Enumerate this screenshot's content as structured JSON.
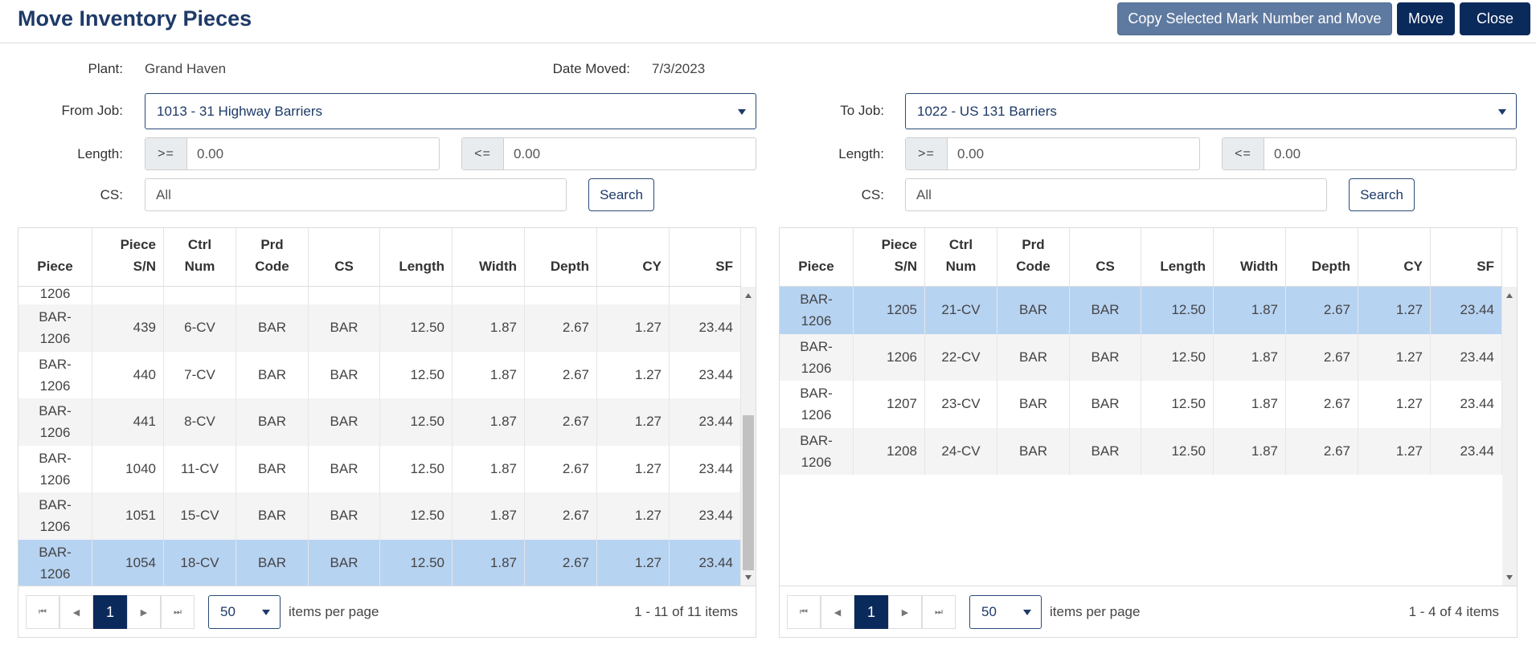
{
  "header": {
    "title": "Move Inventory Pieces",
    "copy_label": "Copy Selected Mark Number and Move",
    "move_label": "Move",
    "close_label": "Close"
  },
  "form": {
    "plant_label": "Plant:",
    "plant_value": "Grand Haven",
    "date_label": "Date Moved:",
    "date_value": "7/3/2023",
    "from_job_label": "From Job:",
    "from_job_value": "1013 - 31 Highway Barriers",
    "to_job_label": "To Job:",
    "to_job_value": "1022 - US 131 Barriers",
    "length_label": "Length:",
    "gte": ">=",
    "lte": "<=",
    "from_length_min": "0.00",
    "from_length_max": "0.00",
    "to_length_min": "0.00",
    "to_length_max": "0.00",
    "cs_label": "CS:",
    "from_cs_value": "All",
    "to_cs_value": "All",
    "search_label": "Search"
  },
  "columns": {
    "piece": "Piece",
    "sn_line1": "Piece",
    "sn_line2": "S/N",
    "ctrl_line1": "Ctrl",
    "ctrl_line2": "Num",
    "prd_line1": "Prd",
    "prd_line2": "Code",
    "cs": "CS",
    "length": "Length",
    "width": "Width",
    "depth": "Depth",
    "cy": "CY",
    "sf": "SF"
  },
  "left_grid": {
    "partial_row_piece": "1206",
    "rows": [
      {
        "piece_a": "BAR-",
        "piece_b": "1206",
        "sn": "439",
        "ctrl": "6-CV",
        "prd": "BAR",
        "cs": "BAR",
        "length": "12.50",
        "width": "1.87",
        "depth": "2.67",
        "cy": "1.27",
        "sf": "23.44"
      },
      {
        "piece_a": "BAR-",
        "piece_b": "1206",
        "sn": "440",
        "ctrl": "7-CV",
        "prd": "BAR",
        "cs": "BAR",
        "length": "12.50",
        "width": "1.87",
        "depth": "2.67",
        "cy": "1.27",
        "sf": "23.44"
      },
      {
        "piece_a": "BAR-",
        "piece_b": "1206",
        "sn": "441",
        "ctrl": "8-CV",
        "prd": "BAR",
        "cs": "BAR",
        "length": "12.50",
        "width": "1.87",
        "depth": "2.67",
        "cy": "1.27",
        "sf": "23.44"
      },
      {
        "piece_a": "BAR-",
        "piece_b": "1206",
        "sn": "1040",
        "ctrl": "11-CV",
        "prd": "BAR",
        "cs": "BAR",
        "length": "12.50",
        "width": "1.87",
        "depth": "2.67",
        "cy": "1.27",
        "sf": "23.44"
      },
      {
        "piece_a": "BAR-",
        "piece_b": "1206",
        "sn": "1051",
        "ctrl": "15-CV",
        "prd": "BAR",
        "cs": "BAR",
        "length": "12.50",
        "width": "1.87",
        "depth": "2.67",
        "cy": "1.27",
        "sf": "23.44"
      },
      {
        "piece_a": "BAR-",
        "piece_b": "1206",
        "sn": "1054",
        "ctrl": "18-CV",
        "prd": "BAR",
        "cs": "BAR",
        "length": "12.50",
        "width": "1.87",
        "depth": "2.67",
        "cy": "1.27",
        "sf": "23.44"
      }
    ],
    "page": "1",
    "page_size": "50",
    "items_per_page": "items per page",
    "summary": "1 - 11 of 11 items"
  },
  "right_grid": {
    "rows": [
      {
        "piece_a": "BAR-",
        "piece_b": "1206",
        "sn": "1205",
        "ctrl": "21-CV",
        "prd": "BAR",
        "cs": "BAR",
        "length": "12.50",
        "width": "1.87",
        "depth": "2.67",
        "cy": "1.27",
        "sf": "23.44"
      },
      {
        "piece_a": "BAR-",
        "piece_b": "1206",
        "sn": "1206",
        "ctrl": "22-CV",
        "prd": "BAR",
        "cs": "BAR",
        "length": "12.50",
        "width": "1.87",
        "depth": "2.67",
        "cy": "1.27",
        "sf": "23.44"
      },
      {
        "piece_a": "BAR-",
        "piece_b": "1206",
        "sn": "1207",
        "ctrl": "23-CV",
        "prd": "BAR",
        "cs": "BAR",
        "length": "12.50",
        "width": "1.87",
        "depth": "2.67",
        "cy": "1.27",
        "sf": "23.44"
      },
      {
        "piece_a": "BAR-",
        "piece_b": "1206",
        "sn": "1208",
        "ctrl": "24-CV",
        "prd": "BAR",
        "cs": "BAR",
        "length": "12.50",
        "width": "1.87",
        "depth": "2.67",
        "cy": "1.27",
        "sf": "23.44"
      }
    ],
    "page": "1",
    "page_size": "50",
    "items_per_page": "items per page",
    "summary": "1 - 4 of 4 items"
  },
  "pager_icons": [
    "first-page-icon",
    "prev-page-icon",
    "next-page-icon",
    "last-page-icon"
  ],
  "colors": {
    "primary": "#0b2a5c",
    "secondary_button": "#5f7aa0",
    "selected_row": "#b7d3f2",
    "title": "#1e3a68"
  }
}
